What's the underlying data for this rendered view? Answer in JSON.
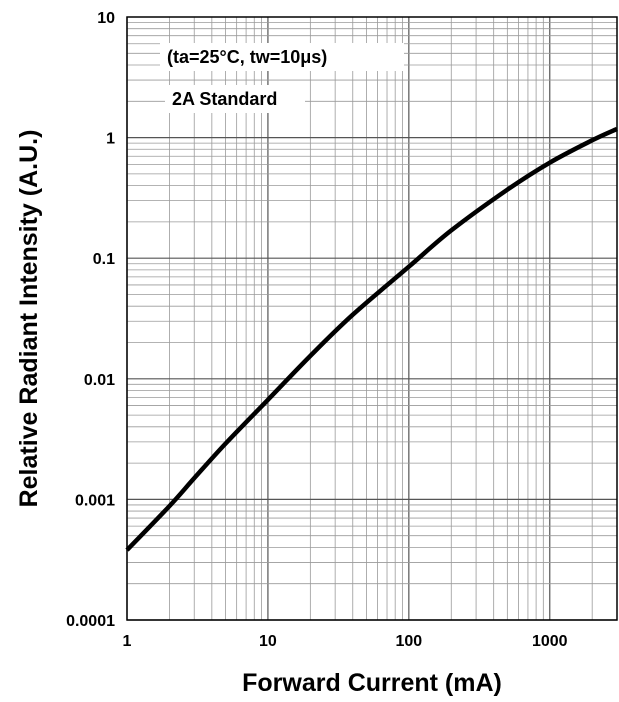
{
  "chart_data": {
    "type": "line",
    "title": "",
    "xlabel": "Forward Current (mA)",
    "ylabel": "Relative Radiant Intensity (A.U.)",
    "x_scale": "log",
    "y_scale": "log",
    "xlim": [
      1,
      3000
    ],
    "ylim": [
      0.0001,
      10
    ],
    "grid": true,
    "x_ticks": [
      "1",
      "10",
      "100",
      "1000"
    ],
    "y_ticks": [
      "10",
      "1",
      "0.1",
      "0.01",
      "0.001",
      "0.0001"
    ],
    "annotations": [
      "(ta=25°C, tw=10μs)",
      "2A Standard"
    ],
    "series": [
      {
        "x": [
          1,
          2,
          3,
          5,
          10,
          20,
          40,
          100,
          200,
          500,
          1000,
          2000,
          3000
        ],
        "y": [
          0.00038,
          0.00088,
          0.0015,
          0.0029,
          0.0067,
          0.0155,
          0.034,
          0.085,
          0.17,
          0.37,
          0.62,
          0.95,
          1.18
        ]
      }
    ]
  }
}
